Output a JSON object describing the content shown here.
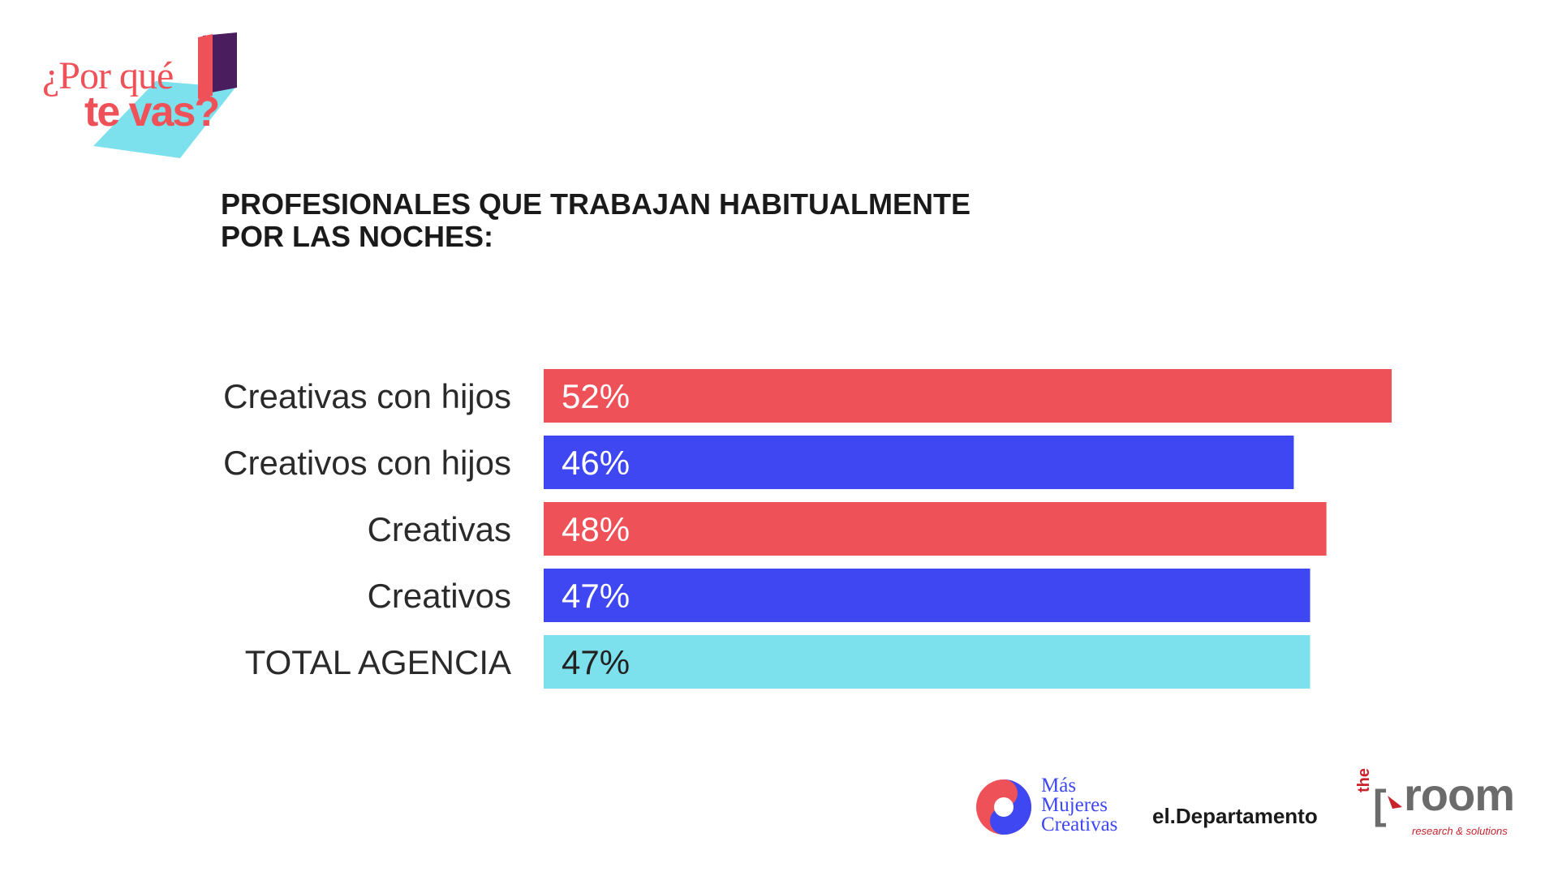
{
  "logo": {
    "line1": "¿Por qué",
    "line2": "te vas?"
  },
  "title": {
    "line1": "PROFESIONALES QUE TRABAJAN HABITUALMENTE",
    "line2": "POR LAS NOCHES:"
  },
  "colors": {
    "red": "#ef5158",
    "blue": "#3f47f2",
    "cyan": "#7ce1ec",
    "purple": "#4a1e5e"
  },
  "chart_data": {
    "type": "bar",
    "orientation": "horizontal",
    "categories": [
      "Creativas con hijos",
      "Creativos con hijos",
      "Creativas",
      "Creativos",
      "TOTAL AGENCIA"
    ],
    "values": [
      52,
      46,
      48,
      47,
      47
    ],
    "value_labels": [
      "52%",
      "46%",
      "48%",
      "47%",
      "47%"
    ],
    "bar_colors": [
      "#ef5158",
      "#3f47f2",
      "#ef5158",
      "#3f47f2",
      "#7ce1ec"
    ],
    "value_label_colors": [
      "#ffffff",
      "#ffffff",
      "#ffffff",
      "#ffffff",
      "#222222"
    ],
    "xlim": [
      0,
      52
    ],
    "grid": false,
    "legend": "none"
  },
  "partners": {
    "mmc": {
      "line1": "Más",
      "line2": "Mujeres",
      "line3": "Creativas"
    },
    "dept": "el.Departamento",
    "room": {
      "the": "the",
      "word": "room",
      "sub": "research & solutions"
    }
  }
}
